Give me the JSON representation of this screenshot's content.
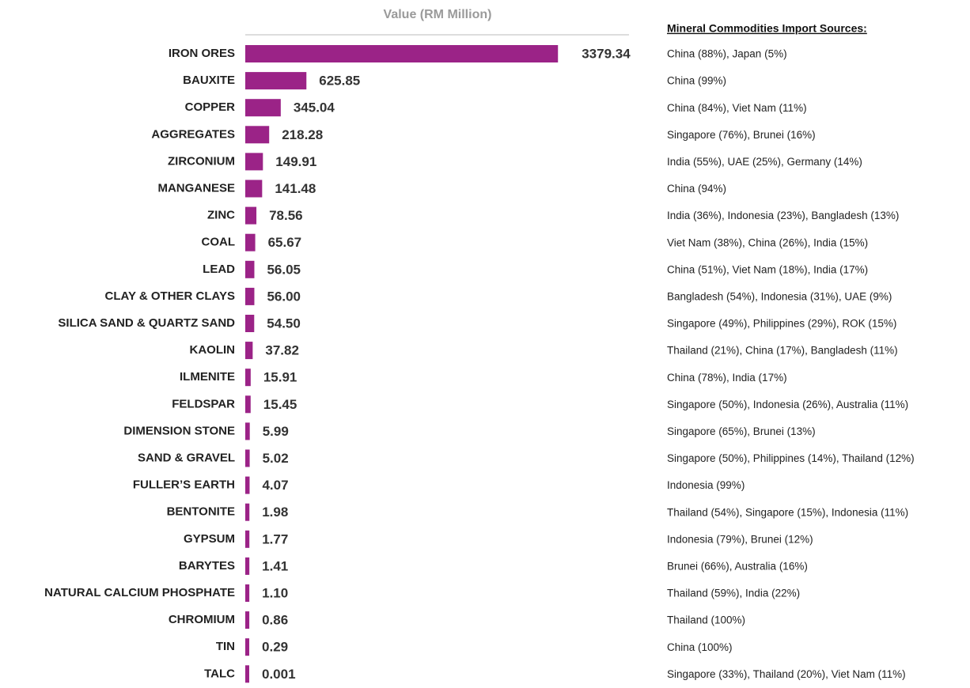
{
  "chart_data": {
    "type": "barh",
    "x_label": "Value (RM Million)",
    "annotation_title": "Mineral Commodities Import Sources:",
    "categories": [
      "IRON ORES",
      "BAUXITE",
      "COPPER",
      "AGGREGATES",
      "ZIRCONIUM",
      "MANGANESE",
      "ZINC",
      "COAL",
      "LEAD",
      "CLAY & OTHER CLAYS",
      "SILICA SAND & QUARTZ SAND",
      "KAOLIN",
      "ILMENITE",
      "FELDSPAR",
      "DIMENSION STONE",
      "SAND & GRAVEL",
      "FULLER’S EARTH",
      "BENTONITE",
      "GYPSUM",
      "BARYTES",
      "NATURAL CALCIUM PHOSPHATE",
      "CHROMIUM",
      "TIN",
      "TALC"
    ],
    "values": [
      3379.34,
      625.85,
      345.04,
      218.28,
      149.91,
      141.48,
      78.56,
      65.67,
      56.05,
      56,
      54.5,
      37.82,
      15.91,
      15.45,
      5.99,
      5.02,
      4.07,
      1.98,
      1.77,
      1.41,
      1.1,
      0.86,
      0.29,
      0.001
    ],
    "value_labels": [
      "3379.34",
      "625.85",
      "345.04",
      "218.28",
      "149.91",
      "141.48",
      "78.56",
      "65.67",
      "56.05",
      "56.00",
      "54.50",
      "37.82",
      "15.91",
      "15.45",
      "5.99",
      "5.02",
      "4.07",
      "1.98",
      "1.77",
      "1.41",
      "1.10",
      "0.86",
      "0.29",
      "0.001"
    ],
    "annotations": [
      "China (88%), Japan (5%)",
      "China (99%)",
      "China (84%), Viet Nam (11%)",
      "Singapore (76%), Brunei (16%)",
      "India (55%), UAE (25%), Germany (14%)",
      "China (94%)",
      "India (36%), Indonesia (23%), Bangladesh (13%)",
      "Viet Nam (38%), China (26%), India (15%)",
      "China (51%), Viet Nam (18%), India (17%)",
      "Bangladesh (54%), Indonesia (31%), UAE (9%)",
      "Singapore (49%), Philippines (29%), ROK (15%)",
      "Thailand (21%), China (17%), Bangladesh (11%)",
      "China (78%), India (17%)",
      "Singapore (50%), Indonesia (26%), Australia (11%)",
      "Singapore (65%), Brunei (13%)",
      "Singapore (50%), Philippines (14%), Thailand (12%)",
      "Indonesia (99%)",
      "Thailand (54%), Singapore (15%), Indonesia (11%)",
      "Indonesia (79%), Brunei (12%)",
      "Brunei (66%), Australia (16%)",
      "Thailand (59%), India (22%)",
      "Thailand (100%)",
      "China (100%)",
      "Singapore (33%), Thailand (20%), Viet Nam (11%)"
    ],
    "color": "#9b2387",
    "xlim": [
      0,
      4200
    ]
  }
}
